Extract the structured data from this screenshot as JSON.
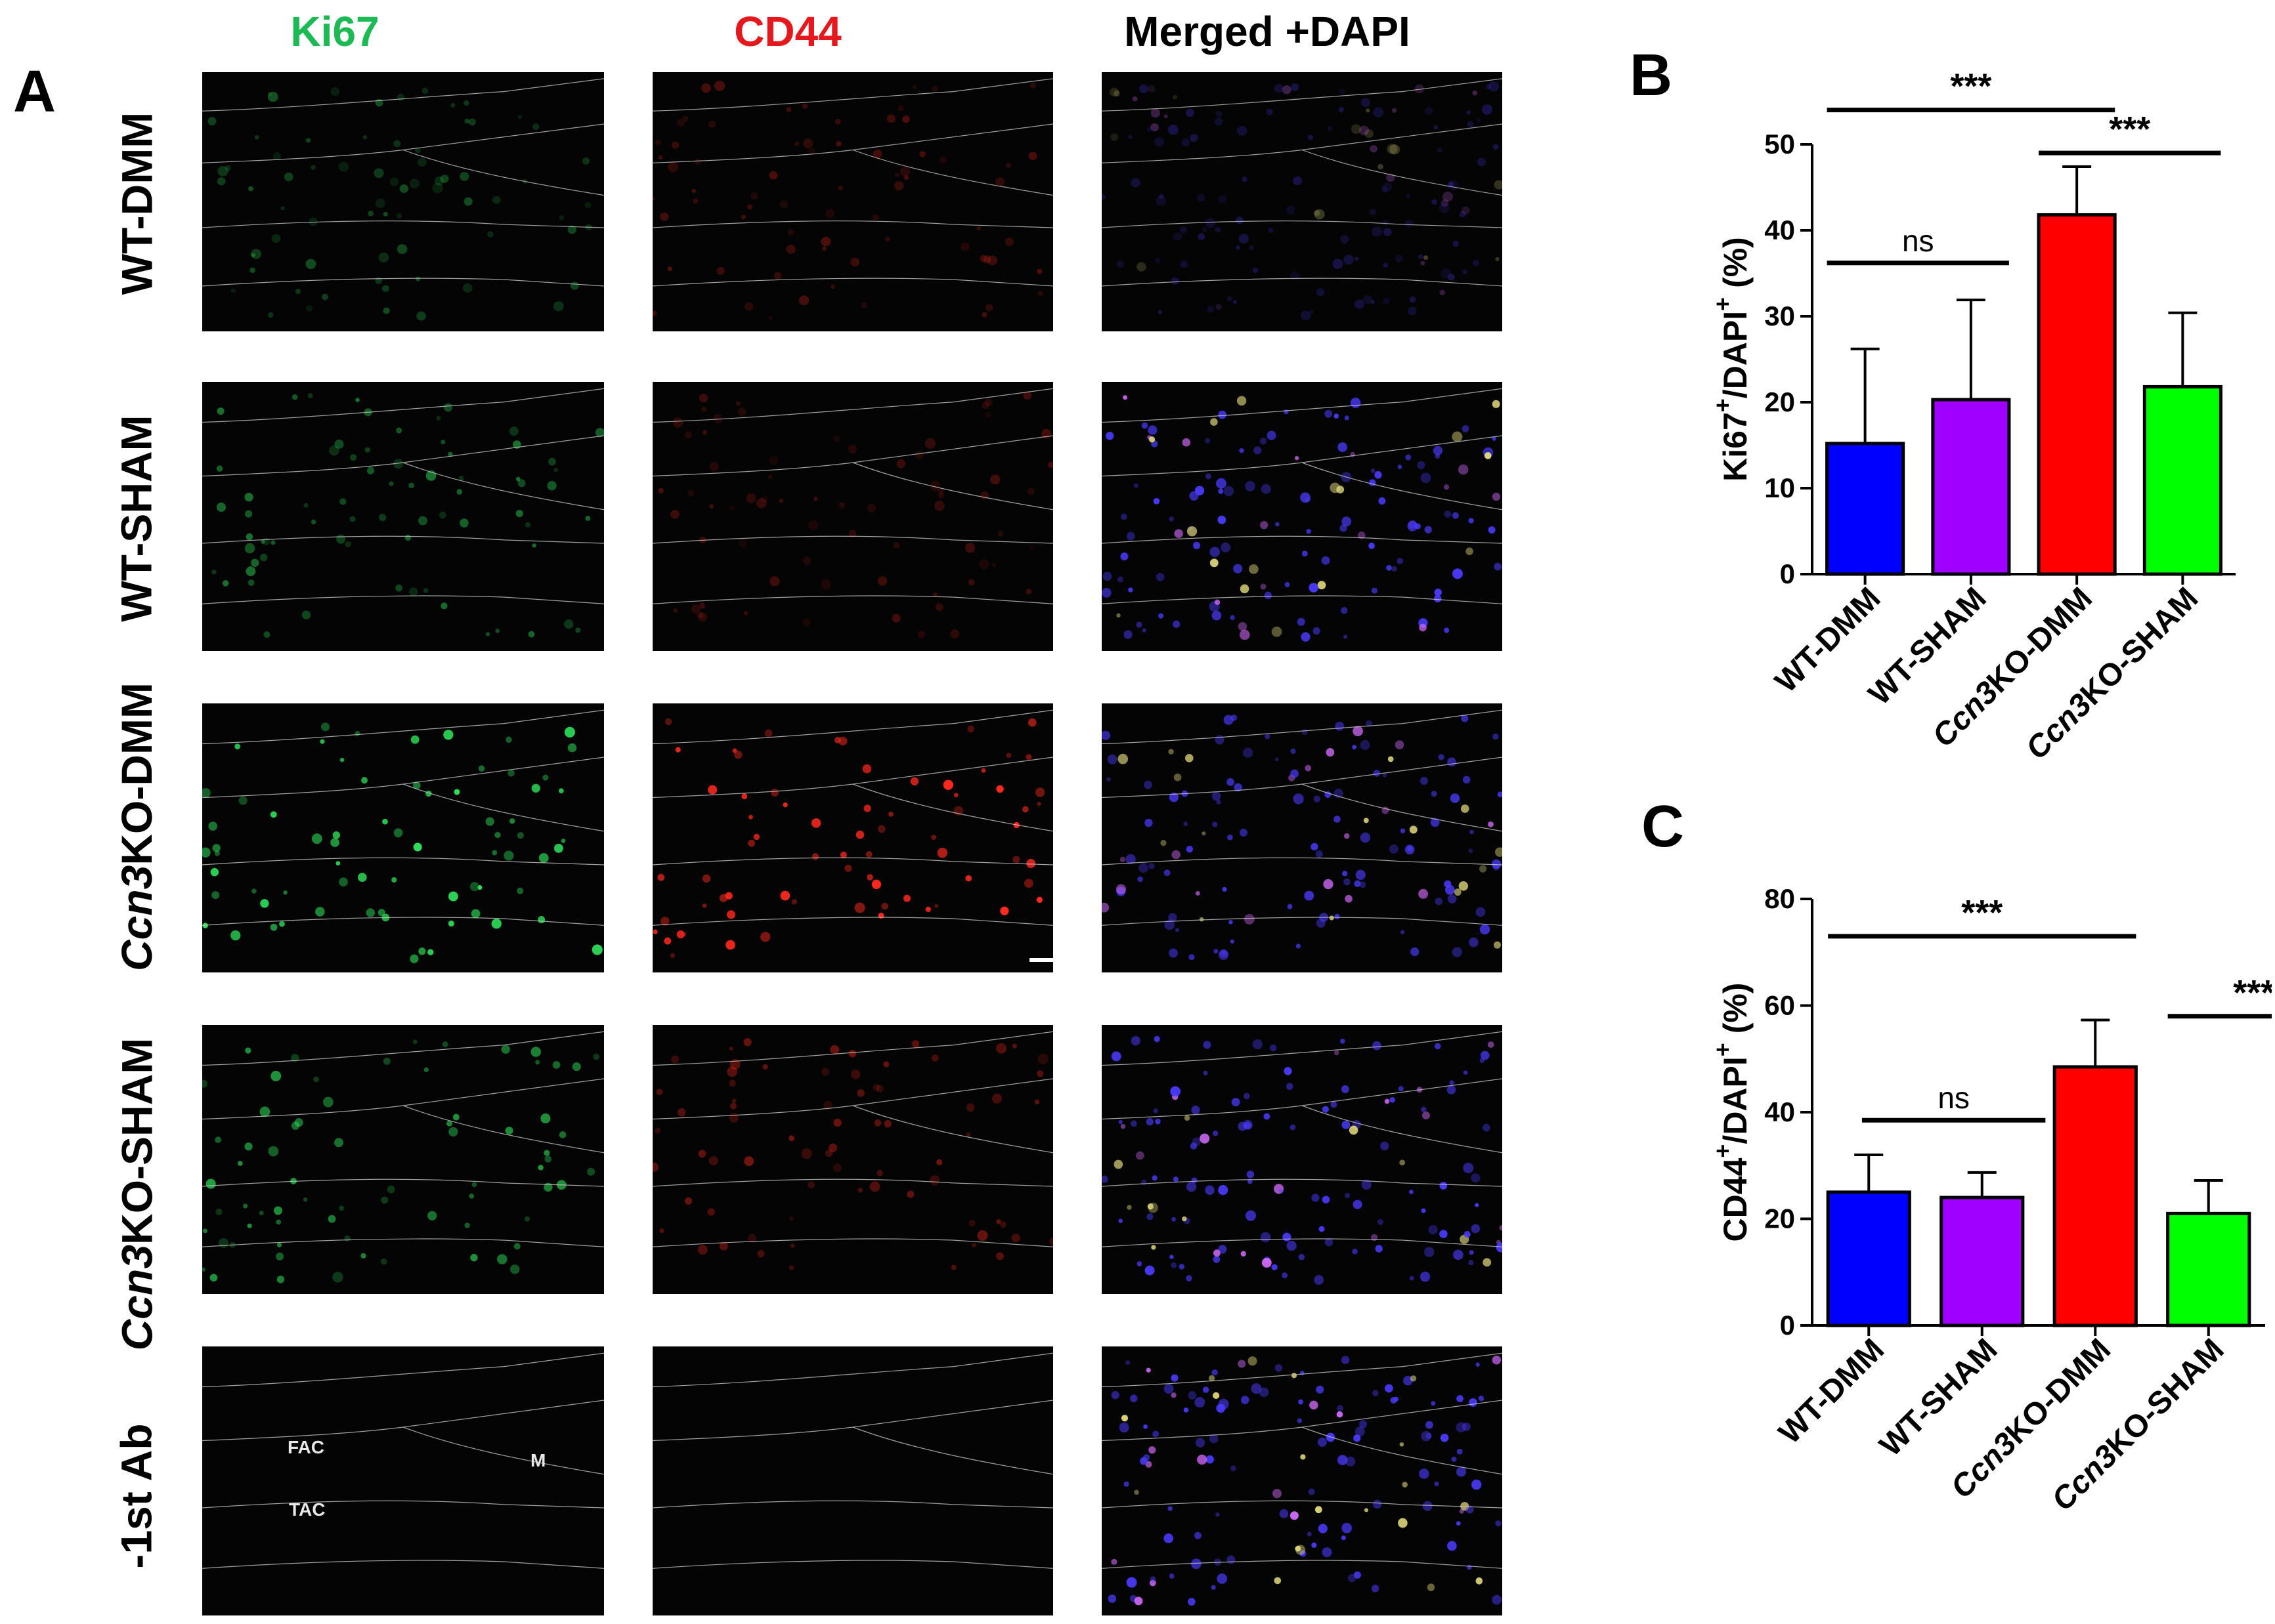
{
  "figure": {
    "panel_a_letter": "A",
    "panel_b_letter": "B",
    "panel_c_letter": "C",
    "column_headers": [
      {
        "text": "Ki67",
        "color": "#1db954"
      },
      {
        "text": "CD44",
        "color": "#e3191e"
      },
      {
        "text": "Merged +DAPI",
        "color": "#000000"
      }
    ],
    "row_labels": [
      {
        "italic": "",
        "text": "WT-DMM"
      },
      {
        "italic": "",
        "text": "WT-SHAM"
      },
      {
        "italic": "Ccn3",
        "text": " KO-DMM"
      },
      {
        "italic": "Ccn3",
        "text": " KO-SHAM"
      },
      {
        "italic": "",
        "text": "-1st Ab"
      }
    ],
    "micrograph_labels": {
      "fac": "FAC",
      "m": "M",
      "tac": "TAC"
    },
    "channel_colors": {
      "ki67": "#2ee05a",
      "cd44": "#ff2a20",
      "dapi": "#4b3cff",
      "outline": "#c8c8c8",
      "background": "#040404"
    }
  },
  "chart_data": [
    {
      "type": "bar",
      "panel": "B",
      "ylabel_main": "Ki67",
      "ylabel_mid": "/DAPI",
      "ylabel_sup": "+",
      "ylabel_unit": "(%)",
      "categories": [
        {
          "italic": "",
          "text": "WT-DMM"
        },
        {
          "italic": "",
          "text": "WT-SHAM"
        },
        {
          "italic": "Ccn3",
          "text": "KO-DMM"
        },
        {
          "italic": "Ccn3",
          "text": "KO-SHAM"
        }
      ],
      "values": [
        15.2,
        20.3,
        41.8,
        21.8
      ],
      "errors": [
        11.0,
        11.6,
        5.6,
        8.6
      ],
      "colors": [
        "#0000ff",
        "#a000ff",
        "#ff0000",
        "#00ff00"
      ],
      "ylim": [
        0,
        50
      ],
      "yticks": [
        0,
        10,
        20,
        30,
        40,
        50
      ],
      "significance": [
        {
          "from": 0,
          "to": 2,
          "label": "***",
          "y": 54.0
        },
        {
          "from": 2,
          "to": 3,
          "label": "***",
          "y": 49.0
        },
        {
          "from": 0,
          "to": 1,
          "label": "ns",
          "y": 36.2
        }
      ]
    },
    {
      "type": "bar",
      "panel": "C",
      "ylabel_main": "CD44",
      "ylabel_mid": "/DAPI",
      "ylabel_sup": "+",
      "ylabel_unit": "(%)",
      "categories": [
        {
          "italic": "",
          "text": "WT-DMM"
        },
        {
          "italic": "",
          "text": "WT-SHAM"
        },
        {
          "italic": "Ccn3",
          "text": "KO-DMM"
        },
        {
          "italic": "Ccn3",
          "text": "KO-SHAM"
        }
      ],
      "values": [
        25.0,
        24.0,
        48.5,
        21.0
      ],
      "errors": [
        7.0,
        4.7,
        8.8,
        6.2
      ],
      "colors": [
        "#0000ff",
        "#a000ff",
        "#ff0000",
        "#00ff00"
      ],
      "ylim": [
        0,
        80
      ],
      "yticks": [
        0,
        20,
        40,
        60,
        80
      ],
      "significance": [
        {
          "from": 0,
          "to": 2,
          "label": "***",
          "y": 73.0
        },
        {
          "from": 3,
          "to": 3.8,
          "label": "***",
          "y": 58.0
        },
        {
          "from": 0.3,
          "to": 1.2,
          "label": "ns",
          "y": 38.5
        }
      ]
    }
  ]
}
